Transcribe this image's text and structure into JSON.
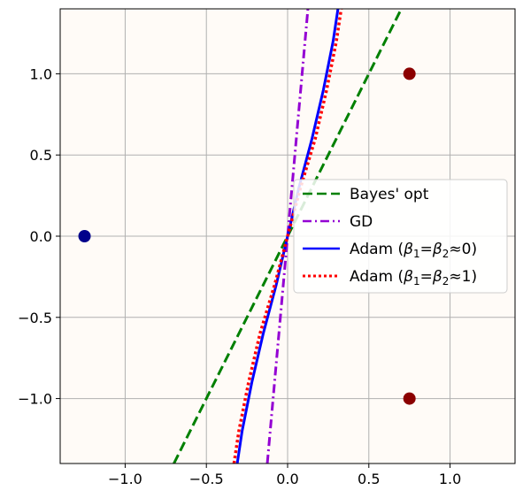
{
  "chart_data": {
    "type": "line",
    "xlim": [
      -1.4,
      1.4
    ],
    "ylim": [
      -1.4,
      1.4
    ],
    "x_ticks": [
      -1.0,
      -0.5,
      0.0,
      0.5,
      1.0
    ],
    "y_ticks": [
      -1.0,
      -0.5,
      0.0,
      0.5,
      1.0
    ],
    "x_tick_labels": [
      "−1.0",
      "−0.5",
      "0.0",
      "0.5",
      "1.0"
    ],
    "y_tick_labels": [
      "−1.0",
      "−0.5",
      "0.0",
      "0.5",
      "1.0"
    ],
    "grid": true,
    "legend_position": "center-right",
    "background_color": "#fffbf7",
    "points": [
      {
        "x": -1.25,
        "y": 0.0,
        "color": "#00008b"
      },
      {
        "x": 0.75,
        "y": 1.0,
        "color": "#8b0000"
      },
      {
        "x": 0.75,
        "y": -1.0,
        "color": "#8b0000"
      }
    ],
    "series": [
      {
        "name": "Bayes' opt",
        "color": "#008000",
        "style": "dashed",
        "x": [
          -0.7,
          0.7
        ],
        "y": [
          -1.4,
          1.4
        ]
      },
      {
        "name": "GD",
        "color": "#9400d3",
        "style": "dashdot",
        "x": [
          -0.125,
          0.125
        ],
        "y": [
          -1.4,
          1.4
        ]
      },
      {
        "name": "Adam (β₁=β₂≈0)",
        "name_parts": [
          "Adam (",
          "β",
          "1",
          "=",
          "β",
          "2",
          "≈0)"
        ],
        "color": "#0000ff",
        "style": "solid",
        "x": [
          -0.31,
          -0.28,
          -0.22,
          -0.15,
          -0.07,
          0.0,
          0.07,
          0.15,
          0.22,
          0.28,
          0.31
        ],
        "y": [
          -1.4,
          -1.2,
          -0.9,
          -0.6,
          -0.3,
          0.0,
          0.3,
          0.6,
          0.9,
          1.2,
          1.4
        ]
      },
      {
        "name": "Adam (β₁=β₂≈1)",
        "name_parts": [
          "Adam (",
          "β",
          "1",
          "=",
          "β",
          "2",
          "≈1)"
        ],
        "color": "#ff0000",
        "style": "dotted",
        "x": [
          -0.33,
          -0.3,
          -0.24,
          -0.17,
          -0.08,
          0.0,
          0.08,
          0.17,
          0.24,
          0.3,
          0.33
        ],
        "y": [
          -1.4,
          -1.2,
          -0.9,
          -0.6,
          -0.3,
          0.0,
          0.3,
          0.6,
          0.9,
          1.2,
          1.4
        ]
      }
    ]
  }
}
